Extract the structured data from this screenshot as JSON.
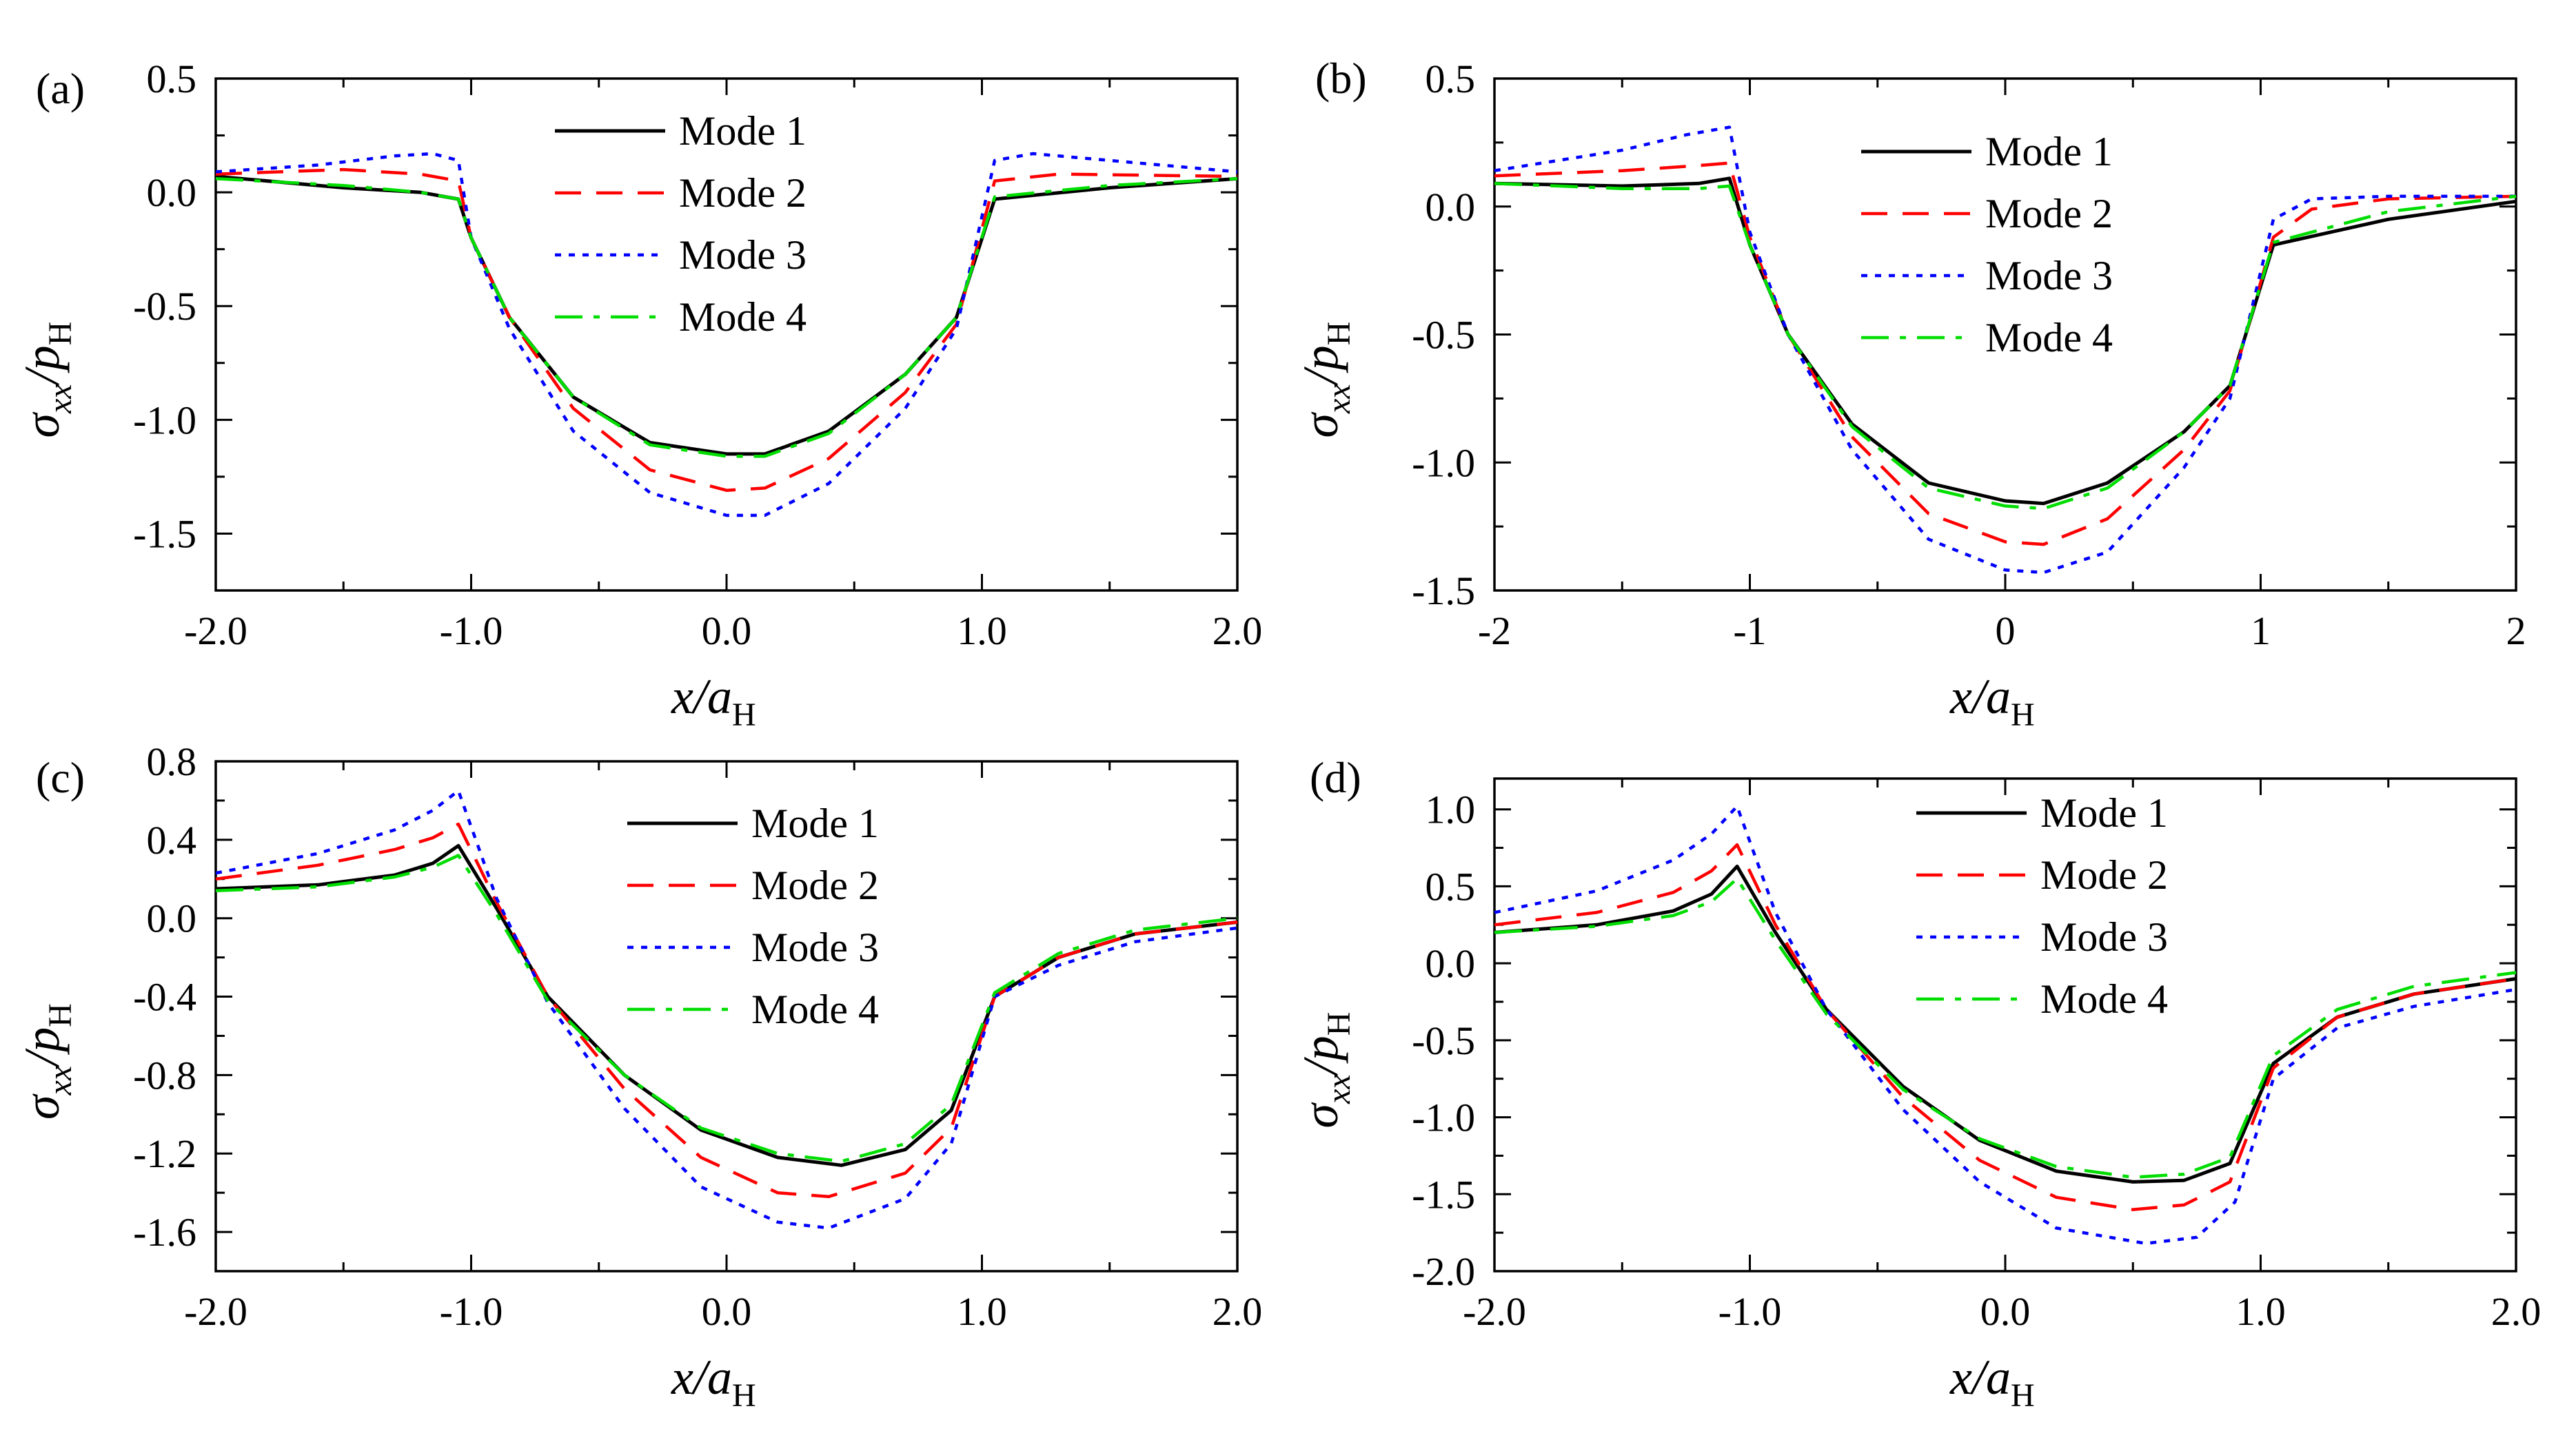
{
  "legend_labels": [
    "Mode 1",
    "Mode 2",
    "Mode 3",
    "Mode 4"
  ],
  "series_colors": [
    "#000000",
    "#ff0000",
    "#0000ff",
    "#00dd00"
  ],
  "series_dash": [
    "solid",
    "dash",
    "dot",
    "dashdot"
  ],
  "axis_titles": {
    "x_main": "x",
    "x_slash": "/",
    "x_var": "a",
    "x_sub": "H",
    "y_main": "σ",
    "y_sub1": "xx",
    "y_slash": "/",
    "y_var": "p",
    "y_sub2": "H"
  },
  "chart_data": [
    {
      "panel_label": "(a)",
      "type": "line",
      "xlim": [
        -2.0,
        2.0
      ],
      "ylim": [
        -1.75,
        0.5
      ],
      "xticks": [
        "-2.0",
        "-1.0",
        "0.0",
        "1.0",
        "2.0"
      ],
      "yticks": [
        "0.5",
        "0.0",
        "-0.5",
        "-1.0",
        "-1.5"
      ],
      "xtick_values": [
        -2,
        -1,
        0,
        1,
        2
      ],
      "ytick_values": [
        0.5,
        0.0,
        -0.5,
        -1.0,
        -1.5
      ],
      "legend_position": "top-center",
      "series": [
        {
          "name": "Mode 1",
          "x": [
            -2.0,
            -1.5,
            -1.2,
            -1.05,
            -1.0,
            -0.85,
            -0.6,
            -0.3,
            0.0,
            0.15,
            0.4,
            0.7,
            0.9,
            1.05,
            1.5,
            2.0
          ],
          "y": [
            0.07,
            0.02,
            0.0,
            -0.03,
            -0.2,
            -0.55,
            -0.9,
            -1.1,
            -1.15,
            -1.15,
            -1.05,
            -0.8,
            -0.55,
            -0.03,
            0.02,
            0.06
          ]
        },
        {
          "name": "Mode 2",
          "x": [
            -2.0,
            -1.5,
            -1.2,
            -1.05,
            -1.0,
            -0.85,
            -0.6,
            -0.3,
            0.0,
            0.15,
            0.4,
            0.7,
            0.9,
            1.05,
            1.3,
            2.0
          ],
          "y": [
            0.08,
            0.1,
            0.08,
            0.05,
            -0.2,
            -0.55,
            -0.95,
            -1.22,
            -1.31,
            -1.3,
            -1.17,
            -0.88,
            -0.58,
            0.05,
            0.08,
            0.07
          ]
        },
        {
          "name": "Mode 3",
          "x": [
            -2.0,
            -1.6,
            -1.3,
            -1.15,
            -1.05,
            -1.0,
            -0.85,
            -0.6,
            -0.3,
            0.0,
            0.15,
            0.4,
            0.7,
            0.9,
            1.05,
            1.2,
            1.5,
            2.0
          ],
          "y": [
            0.09,
            0.12,
            0.16,
            0.17,
            0.14,
            -0.2,
            -0.6,
            -1.05,
            -1.32,
            -1.42,
            -1.42,
            -1.28,
            -0.95,
            -0.6,
            0.14,
            0.17,
            0.14,
            0.09
          ]
        },
        {
          "name": "Mode 4",
          "x": [
            -2.0,
            -1.5,
            -1.2,
            -1.05,
            -1.0,
            -0.85,
            -0.6,
            -0.3,
            0.0,
            0.15,
            0.4,
            0.7,
            0.9,
            1.05,
            1.5,
            2.0
          ],
          "y": [
            0.06,
            0.03,
            0.0,
            -0.03,
            -0.2,
            -0.55,
            -0.9,
            -1.11,
            -1.16,
            -1.16,
            -1.06,
            -0.8,
            -0.55,
            -0.02,
            0.03,
            0.06
          ]
        }
      ]
    },
    {
      "panel_label": "(b)",
      "type": "line",
      "xlim": [
        -2,
        2
      ],
      "ylim": [
        -1.5,
        0.5
      ],
      "xticks": [
        "-2",
        "-1",
        "0",
        "1",
        "2"
      ],
      "yticks": [
        "0.5",
        "0.0",
        "-0.5",
        "-1.0",
        "-1.5"
      ],
      "xtick_values": [
        -2,
        -1,
        0,
        1,
        2
      ],
      "ytick_values": [
        0.5,
        0.0,
        -0.5,
        -1.0,
        -1.5
      ],
      "legend_position": "top-right",
      "series": [
        {
          "name": "Mode 1",
          "x": [
            -2.0,
            -1.5,
            -1.2,
            -1.08,
            -1.0,
            -0.85,
            -0.6,
            -0.3,
            0.0,
            0.15,
            0.4,
            0.7,
            0.88,
            1.05,
            1.5,
            2.0
          ],
          "y": [
            0.09,
            0.08,
            0.09,
            0.11,
            -0.15,
            -0.5,
            -0.85,
            -1.08,
            -1.15,
            -1.16,
            -1.08,
            -0.88,
            -0.7,
            -0.15,
            -0.05,
            0.02
          ]
        },
        {
          "name": "Mode 2",
          "x": [
            -2.0,
            -1.5,
            -1.2,
            -1.08,
            -1.0,
            -0.85,
            -0.6,
            -0.3,
            0.0,
            0.15,
            0.4,
            0.7,
            0.88,
            1.05,
            1.2,
            1.5,
            2.0
          ],
          "y": [
            0.12,
            0.14,
            0.16,
            0.17,
            -0.12,
            -0.5,
            -0.9,
            -1.2,
            -1.31,
            -1.32,
            -1.22,
            -0.95,
            -0.72,
            -0.12,
            -0.01,
            0.03,
            0.04
          ]
        },
        {
          "name": "Mode 3",
          "x": [
            -2.0,
            -1.5,
            -1.25,
            -1.08,
            -1.0,
            -0.85,
            -0.6,
            -0.3,
            0.0,
            0.15,
            0.4,
            0.7,
            0.88,
            1.05,
            1.2,
            1.5,
            2.0
          ],
          "y": [
            0.14,
            0.22,
            0.28,
            0.31,
            -0.1,
            -0.5,
            -0.95,
            -1.3,
            -1.42,
            -1.43,
            -1.35,
            -1.02,
            -0.75,
            -0.05,
            0.03,
            0.04,
            0.04
          ]
        },
        {
          "name": "Mode 4",
          "x": [
            -2.0,
            -1.5,
            -1.2,
            -1.08,
            -1.0,
            -0.85,
            -0.6,
            -0.3,
            0.0,
            0.15,
            0.4,
            0.7,
            0.88,
            1.05,
            1.5,
            2.0
          ],
          "y": [
            0.09,
            0.07,
            0.07,
            0.08,
            -0.15,
            -0.5,
            -0.86,
            -1.1,
            -1.17,
            -1.18,
            -1.1,
            -0.88,
            -0.7,
            -0.14,
            -0.02,
            0.04
          ]
        }
      ]
    },
    {
      "panel_label": "(c)",
      "type": "line",
      "xlim": [
        -2.0,
        2.0
      ],
      "ylim": [
        -1.8,
        0.8
      ],
      "xticks": [
        "-2.0",
        "-1.0",
        "0.0",
        "1.0",
        "2.0"
      ],
      "yticks": [
        "0.8",
        "0.4",
        "0.0",
        "-0.4",
        "-0.8",
        "-1.2",
        "-1.6"
      ],
      "xtick_values": [
        -2,
        -1,
        0,
        1,
        2
      ],
      "ytick_values": [
        0.8,
        0.4,
        0.0,
        -0.4,
        -0.8,
        -1.2,
        -1.6
      ],
      "legend_position": "top-center",
      "series": [
        {
          "name": "Mode 1",
          "x": [
            -2.0,
            -1.6,
            -1.3,
            -1.15,
            -1.05,
            -0.9,
            -0.7,
            -0.4,
            -0.1,
            0.2,
            0.45,
            0.7,
            0.88,
            1.05,
            1.3,
            1.6,
            2.0
          ],
          "y": [
            0.15,
            0.17,
            0.22,
            0.28,
            0.37,
            0.05,
            -0.4,
            -0.8,
            -1.08,
            -1.22,
            -1.26,
            -1.18,
            -0.98,
            -0.4,
            -0.2,
            -0.08,
            -0.02
          ]
        },
        {
          "name": "Mode 2",
          "x": [
            -2.0,
            -1.6,
            -1.3,
            -1.15,
            -1.05,
            -0.9,
            -0.7,
            -0.4,
            -0.1,
            0.2,
            0.4,
            0.7,
            0.88,
            1.05,
            1.3,
            1.6,
            2.0
          ],
          "y": [
            0.2,
            0.27,
            0.35,
            0.41,
            0.48,
            0.08,
            -0.4,
            -0.87,
            -1.22,
            -1.4,
            -1.42,
            -1.3,
            -1.07,
            -0.4,
            -0.2,
            -0.08,
            -0.02
          ]
        },
        {
          "name": "Mode 3",
          "x": [
            -2.0,
            -1.6,
            -1.3,
            -1.15,
            -1.05,
            -0.9,
            -0.7,
            -0.4,
            -0.1,
            0.2,
            0.4,
            0.7,
            0.88,
            1.05,
            1.3,
            1.6,
            2.0
          ],
          "y": [
            0.23,
            0.33,
            0.45,
            0.55,
            0.65,
            0.1,
            -0.43,
            -0.97,
            -1.37,
            -1.55,
            -1.58,
            -1.43,
            -1.15,
            -0.4,
            -0.24,
            -0.12,
            -0.05
          ]
        },
        {
          "name": "Mode 4",
          "x": [
            -2.0,
            -1.6,
            -1.3,
            -1.15,
            -1.05,
            -0.9,
            -0.7,
            -0.4,
            -0.1,
            0.2,
            0.45,
            0.7,
            0.88,
            1.05,
            1.3,
            1.6,
            2.0
          ],
          "y": [
            0.14,
            0.16,
            0.21,
            0.26,
            0.32,
            0.02,
            -0.42,
            -0.8,
            -1.07,
            -1.2,
            -1.24,
            -1.15,
            -0.95,
            -0.38,
            -0.18,
            -0.06,
            0.0
          ]
        }
      ]
    },
    {
      "panel_label": "(d)",
      "type": "line",
      "xlim": [
        -2.0,
        2.0
      ],
      "ylim": [
        -2.0,
        1.2
      ],
      "xticks": [
        "-2.0",
        "-1.0",
        "0.0",
        "1.0",
        "2.0"
      ],
      "yticks": [
        "1.0",
        "0.5",
        "0.0",
        "-0.5",
        "-1.0",
        "-1.5",
        "-2.0"
      ],
      "xtick_values": [
        -2,
        -1,
        0,
        1,
        2
      ],
      "ytick_values": [
        1.0,
        0.5,
        0.0,
        -0.5,
        -1.0,
        -1.5,
        -2.0
      ],
      "legend_position": "top-center",
      "series": [
        {
          "name": "Mode 1",
          "x": [
            -2.0,
            -1.6,
            -1.3,
            -1.15,
            -1.05,
            -0.9,
            -0.7,
            -0.4,
            -0.1,
            0.2,
            0.5,
            0.7,
            0.88,
            1.05,
            1.3,
            1.6,
            2.0
          ],
          "y": [
            0.2,
            0.25,
            0.34,
            0.45,
            0.63,
            0.2,
            -0.3,
            -0.8,
            -1.15,
            -1.35,
            -1.42,
            -1.41,
            -1.3,
            -0.65,
            -0.35,
            -0.2,
            -0.1
          ]
        },
        {
          "name": "Mode 2",
          "x": [
            -2.0,
            -1.6,
            -1.3,
            -1.15,
            -1.05,
            -0.9,
            -0.7,
            -0.4,
            -0.1,
            0.2,
            0.5,
            0.7,
            0.88,
            1.05,
            1.3,
            1.6,
            2.0
          ],
          "y": [
            0.25,
            0.33,
            0.46,
            0.6,
            0.77,
            0.25,
            -0.3,
            -0.87,
            -1.28,
            -1.52,
            -1.6,
            -1.57,
            -1.42,
            -0.68,
            -0.35,
            -0.2,
            -0.1
          ]
        },
        {
          "name": "Mode 3",
          "x": [
            -2.0,
            -1.6,
            -1.3,
            -1.15,
            -1.05,
            -0.9,
            -0.7,
            -0.4,
            -0.1,
            0.2,
            0.55,
            0.75,
            0.9,
            1.05,
            1.3,
            1.6,
            2.0
          ],
          "y": [
            0.33,
            0.47,
            0.67,
            0.84,
            1.02,
            0.33,
            -0.3,
            -0.95,
            -1.42,
            -1.72,
            -1.82,
            -1.78,
            -1.55,
            -0.75,
            -0.42,
            -0.28,
            -0.17
          ]
        },
        {
          "name": "Mode 4",
          "x": [
            -2.0,
            -1.6,
            -1.3,
            -1.15,
            -1.05,
            -0.9,
            -0.7,
            -0.4,
            -0.1,
            0.2,
            0.5,
            0.7,
            0.88,
            1.05,
            1.3,
            1.6,
            2.0
          ],
          "y": [
            0.2,
            0.24,
            0.31,
            0.4,
            0.55,
            0.15,
            -0.33,
            -0.82,
            -1.14,
            -1.32,
            -1.39,
            -1.37,
            -1.26,
            -0.6,
            -0.3,
            -0.15,
            -0.06
          ]
        }
      ]
    }
  ]
}
